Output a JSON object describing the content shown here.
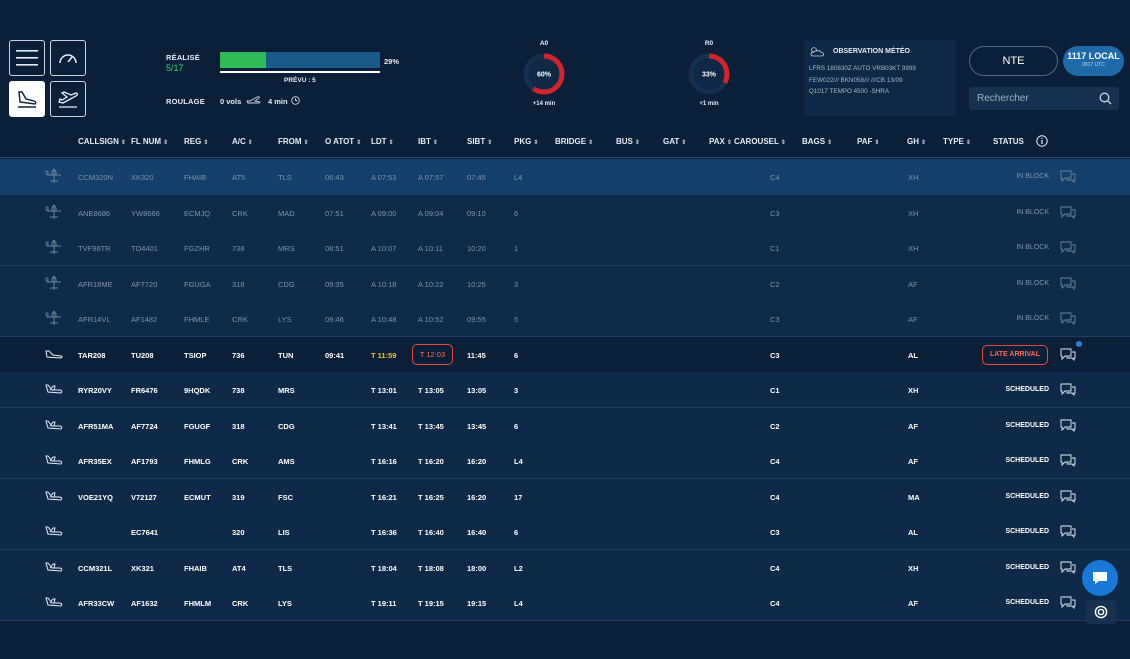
{
  "toolbar": {
    "menu_icon": "hamburger-menu-icon",
    "dashboard_icon": "speedometer-icon",
    "arrival_icon": "plane-landing-icon",
    "departure_icon": "plane-takeoff-icon"
  },
  "stats": {
    "realise_label": "RÉALISÉ",
    "realise_count": "5/17",
    "progress_percent": 29,
    "progress_label": "29%",
    "prevu_label": "PRÉVU : 5",
    "roulage_label": "ROULAGE",
    "roulage_vols": "0 vols",
    "roulage_min": "4 min"
  },
  "gauges": [
    {
      "title": "A0",
      "value": 60,
      "label": "60%",
      "sub": "+14 min"
    },
    {
      "title": "R0",
      "value": 33,
      "label": "33%",
      "sub": "+1 min"
    }
  ],
  "meteo": {
    "title": "OBSERVATION MÉTÉO",
    "lines": [
      "LFRS 180830Z AUTO VRB03KT 9999",
      "FEW022/// BKN058/// ///CB 13/09",
      "Q1017 TEMPO 4500 -SHRA"
    ]
  },
  "airport": "NTE",
  "time": {
    "local": "1117 LOCAL",
    "utc": "0917 UTC"
  },
  "search": {
    "placeholder": "Rechercher"
  },
  "columns": [
    "CALLSIGN",
    "FL NUM",
    "REG",
    "A/C",
    "FROM",
    "O ATOT",
    "LDT",
    "IBT",
    "SIBT",
    "PKG",
    "BRIDGE",
    "BUS",
    "GAT",
    "PAX",
    "CAROUSEL",
    "BAGS",
    "PAF",
    "GH",
    "TYPE",
    "STATUS"
  ],
  "rows": [
    {
      "state": "done",
      "callsign": "CCM320N",
      "flnum": "XK320",
      "reg": "FHAIB",
      "ac": "AT5",
      "from": "TLS",
      "oatot": "06:43",
      "ldt": "A 07:53",
      "ibt": "A 07:57",
      "sibt": "07:45",
      "pkg": "L4",
      "carousel": "C4",
      "gh": "XH",
      "status": "IN BLOCK"
    },
    {
      "state": "done",
      "callsign": "ANE8686",
      "flnum": "YW8686",
      "reg": "ECMJQ",
      "ac": "CRK",
      "from": "MAD",
      "oatot": "07:51",
      "ldt": "A 09:00",
      "ibt": "A 09:04",
      "sibt": "09:10",
      "pkg": "6",
      "carousel": "C3",
      "gh": "XH",
      "status": "IN BLOCK"
    },
    {
      "state": "done",
      "callsign": "TVF96TR",
      "flnum": "TO4401",
      "reg": "FGZHR",
      "ac": "738",
      "from": "MRS",
      "oatot": "08:51",
      "ldt": "A 10:07",
      "ibt": "A 10:11",
      "sibt": "10:20",
      "pkg": "1",
      "carousel": "C1",
      "gh": "XH",
      "status": "IN BLOCK"
    },
    {
      "state": "done",
      "callsign": "AFR18ME",
      "flnum": "AF7720",
      "reg": "FGUGA",
      "ac": "318",
      "from": "CDG",
      "oatot": "09:35",
      "ldt": "A 10:18",
      "ibt": "A 10:22",
      "sibt": "10:25",
      "pkg": "3",
      "carousel": "C2",
      "gh": "AF",
      "status": "IN BLOCK"
    },
    {
      "state": "done",
      "callsign": "AFR14VL",
      "flnum": "AF1482",
      "reg": "FHMLE",
      "ac": "CRK",
      "from": "LYS",
      "oatot": "09:46",
      "ldt": "A 10:48",
      "ibt": "A 10:52",
      "sibt": "09:55",
      "pkg": "5",
      "carousel": "C3",
      "gh": "AF",
      "status": "IN BLOCK"
    },
    {
      "state": "late",
      "callsign": "TAR208",
      "flnum": "TU208",
      "reg": "TSIOP",
      "ac": "736",
      "from": "TUN",
      "oatot": "09:41",
      "ldt": "T 11:59",
      "ibt": "T 12:03",
      "sibt": "11:45",
      "pkg": "6",
      "carousel": "C3",
      "gh": "AL",
      "status": "LATE ARRIVAL"
    },
    {
      "state": "sched",
      "callsign": "RYR20VY",
      "flnum": "FR6476",
      "reg": "9HQDK",
      "ac": "738",
      "from": "MRS",
      "oatot": "",
      "ldt": "T 13:01",
      "ibt": "T 13:05",
      "sibt": "13:05",
      "pkg": "3",
      "carousel": "C1",
      "gh": "XH",
      "status": "SCHEDULED"
    },
    {
      "state": "sched",
      "callsign": "AFR51MA",
      "flnum": "AF7724",
      "reg": "FGUGF",
      "ac": "318",
      "from": "CDG",
      "oatot": "",
      "ldt": "T 13:41",
      "ibt": "T 13:45",
      "sibt": "13:45",
      "pkg": "6",
      "carousel": "C2",
      "gh": "AF",
      "status": "SCHEDULED"
    },
    {
      "state": "sched",
      "callsign": "AFR35EX",
      "flnum": "AF1793",
      "reg": "FHMLG",
      "ac": "CRK",
      "from": "AMS",
      "oatot": "",
      "ldt": "T 16:16",
      "ibt": "T 16:20",
      "sibt": "16:20",
      "pkg": "L4",
      "carousel": "C4",
      "gh": "AF",
      "status": "SCHEDULED"
    },
    {
      "state": "sched",
      "callsign": "VOE21YQ",
      "flnum": "V72127",
      "reg": "ECMUT",
      "ac": "319",
      "from": "FSC",
      "oatot": "",
      "ldt": "T 16:21",
      "ibt": "T 16:25",
      "sibt": "16:20",
      "pkg": "17",
      "carousel": "C4",
      "gh": "MA",
      "status": "SCHEDULED"
    },
    {
      "state": "sched",
      "callsign": "",
      "flnum": "EC7641",
      "reg": "",
      "ac": "320",
      "from": "LIS",
      "oatot": "",
      "ldt": "T 16:36",
      "ibt": "T 16:40",
      "sibt": "16:40",
      "pkg": "6",
      "carousel": "C3",
      "gh": "AL",
      "status": "SCHEDULED"
    },
    {
      "state": "sched",
      "callsign": "CCM321L",
      "flnum": "XK321",
      "reg": "FHAIB",
      "ac": "AT4",
      "from": "TLS",
      "oatot": "",
      "ldt": "T 18:04",
      "ibt": "T 18:08",
      "sibt": "18:00",
      "pkg": "L2",
      "carousel": "C4",
      "gh": "XH",
      "status": "SCHEDULED"
    },
    {
      "state": "sched",
      "callsign": "AFR33CW",
      "flnum": "AF1632",
      "reg": "FHMLM",
      "ac": "CRK",
      "from": "LYS",
      "oatot": "",
      "ldt": "T 19:11",
      "ibt": "T 19:15",
      "sibt": "19:15",
      "pkg": "L4",
      "carousel": "C4",
      "gh": "AF",
      "status": "SCHEDULED"
    }
  ],
  "colors": {
    "background": "#0b2038",
    "accent": "#1e6aa8",
    "late": "#e44b3a",
    "ldt_warning": "#f2c318",
    "progress": "#2fbb55"
  }
}
